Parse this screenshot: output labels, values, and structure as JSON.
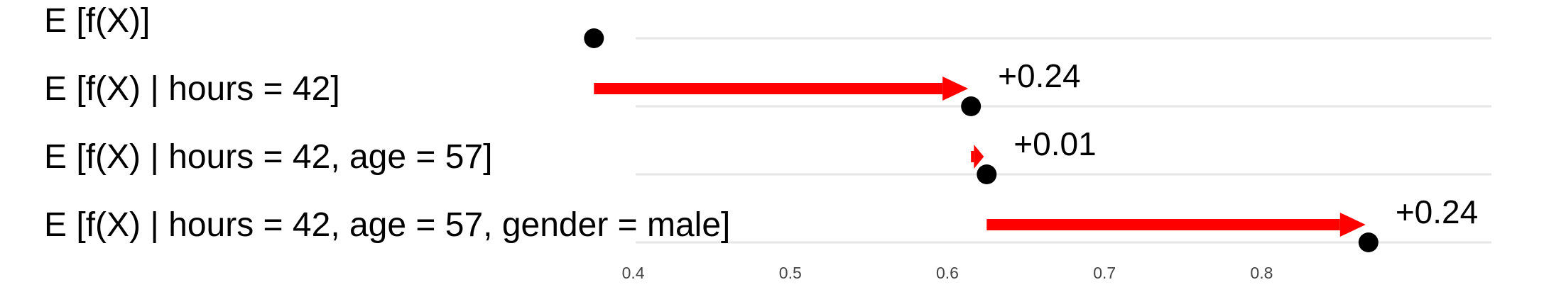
{
  "chart_data": {
    "type": "dot-arrow",
    "title": "",
    "xlabel": "",
    "ylabel": "",
    "xlim": [
      0.35,
      0.9
    ],
    "grid": true,
    "xticks": [
      0.4,
      0.5,
      0.6,
      0.7,
      0.8
    ],
    "xtick_labels": [
      "0.4",
      "0.5",
      "0.6",
      "0.7",
      "0.8"
    ],
    "rows": [
      {
        "label": "E [f(X)]",
        "value": 0.375,
        "from": null,
        "delta": null
      },
      {
        "label": "E [f(X) | hours =  42]",
        "value": 0.615,
        "from": 0.375,
        "delta": "+0.24"
      },
      {
        "label": "E [f(X) | hours = 42, age =  57]",
        "value": 0.625,
        "from": 0.615,
        "delta": "+0.01"
      },
      {
        "label": "E [f(X) | hours = 42, age =  57, gender = male]",
        "value": 0.868,
        "from": 0.625,
        "delta": "+0.24"
      }
    ],
    "colors": {
      "point": "#000000",
      "arrow": "#ff0000",
      "grid": "#e6e6e6",
      "tick_text": "#444444"
    }
  }
}
